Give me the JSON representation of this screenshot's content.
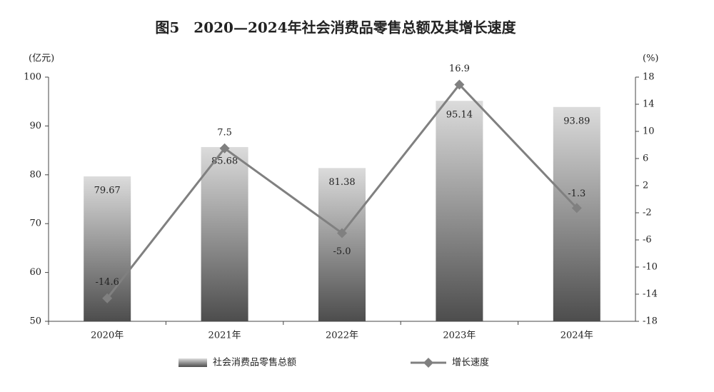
{
  "chart_data": {
    "type": "bar_line",
    "title": "图5　2020—2024年社会消费品零售总额及其增长速度",
    "y_label": "(亿元)",
    "y2_label": "(%)",
    "categories": [
      "2020年",
      "2021年",
      "2022年",
      "2023年",
      "2024年"
    ],
    "series": [
      {
        "name": "社会消费品零售总额",
        "type": "bar",
        "color": "#4d4d4d",
        "values": [
          79.67,
          85.68,
          81.38,
          95.14,
          93.89
        ]
      },
      {
        "name": "增长速度",
        "type": "line",
        "axis": "y2",
        "color": "#808080",
        "values": [
          -14.6,
          7.5,
          -5.0,
          16.9,
          -1.3
        ],
        "value_labels": [
          "-14.6",
          "7.5",
          "-5.0",
          "16.9",
          "-1.3"
        ]
      }
    ],
    "ylim": [
      50,
      100
    ],
    "yticks": [
      50,
      60,
      70,
      80,
      90,
      100
    ],
    "y2lim": [
      -18,
      18
    ],
    "y2ticks": [
      -18,
      -14,
      -10,
      -6,
      -2,
      2,
      6,
      10,
      14,
      18
    ],
    "grid": false,
    "legend": "bottom"
  }
}
